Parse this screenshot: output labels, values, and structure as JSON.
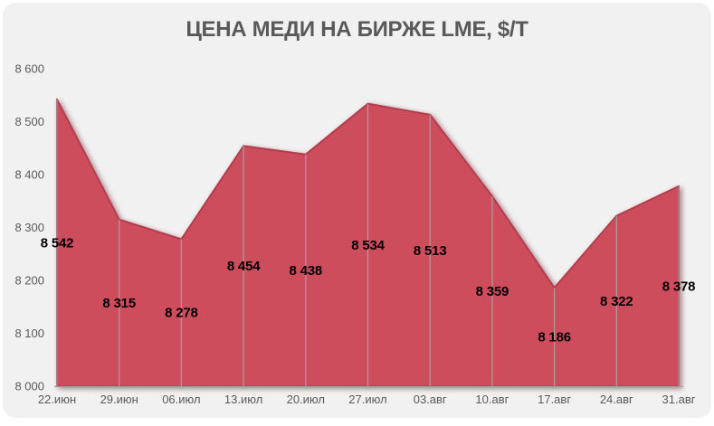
{
  "chart_data": {
    "type": "area",
    "title": "ЦЕНА МЕДИ НА БИРЖЕ LME, $/Т",
    "categories": [
      "22.июн",
      "29.июн",
      "06.июл",
      "13.июл",
      "20.июл",
      "27.июл",
      "03.авг",
      "10.авг",
      "17.авг",
      "24.авг",
      "31.авг"
    ],
    "values": [
      8542,
      8315,
      8278,
      8454,
      8438,
      8534,
      8513,
      8359,
      8186,
      8322,
      8378
    ],
    "value_labels": [
      "8 542",
      "8 315",
      "8 278",
      "8 454",
      "8 438",
      "8 534",
      "8 513",
      "8 359",
      "8 186",
      "8 322",
      "8 378"
    ],
    "xlabel": "",
    "ylabel": "",
    "ylim": [
      8000,
      8600
    ],
    "y_ticks": [
      8000,
      8100,
      8200,
      8300,
      8400,
      8500,
      8600
    ],
    "y_tick_labels": [
      "8 000",
      "8 100",
      "8 200",
      "8 300",
      "8 400",
      "8 500",
      "8 600"
    ],
    "legend": "none",
    "grid": "vertical-drop-lines-only",
    "data_labels_position": "below-points-inside-area",
    "colors": {
      "area_fill": "#CE4D5C",
      "area_edge": "#B23E4E",
      "edge_shadow": "#5A1020",
      "drop_line": "#ABABAB",
      "axis_line": "#9D9DA3",
      "tick_text": "#595959",
      "data_label_text": "#000000",
      "card_bg": "#F2F1F1",
      "page_bg": "#FFFFFF",
      "title_text": "#595959"
    }
  }
}
